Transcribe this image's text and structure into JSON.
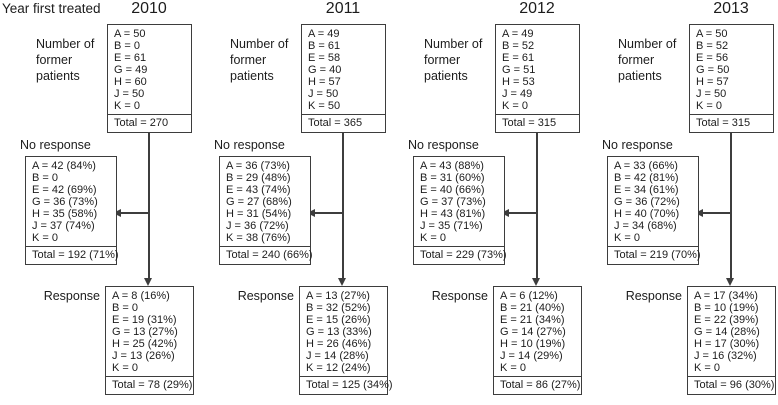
{
  "title": "Year first treated",
  "labels": {
    "patients": "Number of former patients",
    "no_response": "No response",
    "response": "Response"
  },
  "colors": {
    "line": "#3d3d3d",
    "text": "#1c1c1c",
    "background": "#ffffff"
  },
  "columns": [
    {
      "year": "2010",
      "patients": {
        "lines": [
          "A = 50",
          "B = 0",
          "E = 61",
          "G = 49",
          "H = 60",
          "J = 50",
          "K = 0"
        ],
        "total": "Total = 270"
      },
      "no_response": {
        "lines": [
          "A = 42 (84%)",
          "B = 0",
          "E = 42 (69%)",
          "G = 36 (73%)",
          "H = 35 (58%)",
          "J = 37 (74%)",
          "K = 0"
        ],
        "total": "Total = 192 (71%)"
      },
      "response": {
        "lines": [
          "A = 8 (16%)",
          "B = 0",
          "E = 19 (31%)",
          "G = 13 (27%)",
          "H = 25 (42%)",
          "J = 13 (26%)",
          "K = 0"
        ],
        "total": "Total = 78 (29%)"
      }
    },
    {
      "year": "2011",
      "patients": {
        "lines": [
          "A = 49",
          "B = 61",
          "E = 58",
          "G = 40",
          "H = 57",
          "J = 50",
          "K = 50"
        ],
        "total": "Total = 365"
      },
      "no_response": {
        "lines": [
          "A = 36 (73%)",
          "B = 29 (48%)",
          "E = 43 (74%)",
          "G = 27 (68%)",
          "H = 31 (54%)",
          "J = 36 (72%)",
          "K = 38 (76%)"
        ],
        "total": "Total = 240 (66%)"
      },
      "response": {
        "lines": [
          "A = 13 (27%)",
          "B = 32 (52%)",
          "E = 15 (26%)",
          "G = 13 (33%)",
          "H = 26 (46%)",
          "J = 14 (28%)",
          "K = 12 (24%)"
        ],
        "total": "Total = 125 (34%)"
      }
    },
    {
      "year": "2012",
      "patients": {
        "lines": [
          "A = 49",
          "B = 52",
          "E = 61",
          "G = 51",
          "H = 53",
          "J = 49",
          "K = 0"
        ],
        "total": "Total = 315"
      },
      "no_response": {
        "lines": [
          "A = 43 (88%)",
          "B = 31 (60%)",
          "E = 40 (66%)",
          "G = 37 (73%)",
          "H = 43 (81%)",
          "J = 35 (71%)",
          "K = 0"
        ],
        "total": "Total = 229 (73%)"
      },
      "response": {
        "lines": [
          "A = 6 (12%)",
          "B = 21 (40%)",
          "E = 21 (34%)",
          "G = 14 (27%)",
          "H = 10 (19%)",
          "J = 14 (29%)",
          "K = 0"
        ],
        "total": "Total = 86 (27%)"
      }
    },
    {
      "year": "2013",
      "patients": {
        "lines": [
          "A = 50",
          "B = 52",
          "E = 56",
          "G = 50",
          "H = 57",
          "J = 50",
          "K = 0"
        ],
        "total": "Total = 315"
      },
      "no_response": {
        "lines": [
          "A = 33 (66%)",
          "B = 42 (81%)",
          "E = 34 (61%)",
          "G = 36 (72%)",
          "H = 40 (70%)",
          "J = 34 (68%)",
          "K = 0"
        ],
        "total": "Total = 219 (70%)"
      },
      "response": {
        "lines": [
          "A = 17 (34%)",
          "B = 10 (19%)",
          "E = 22 (39%)",
          "G = 14 (28%)",
          "H = 17 (30%)",
          "J = 16 (32%)",
          "K = 0"
        ],
        "total": "Total = 96 (30%)"
      }
    }
  ]
}
